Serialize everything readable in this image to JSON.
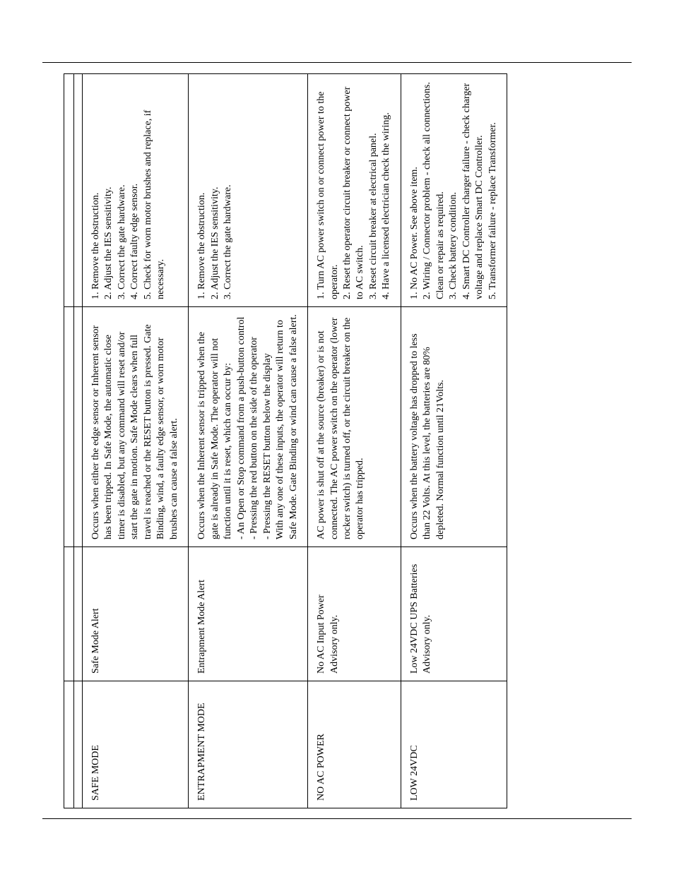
{
  "table": {
    "rows": [
      {
        "display": "SAFE MODE",
        "type": "Safe Mode Alert",
        "reason": "Occurs when either the edge sensor or Inherent sensor has been tripped. In Safe Mode, the automatic close timer is disabled, but any command will reset and/or start the gate in motion. Safe Mode clears when full travel is reached or the RESET button is pressed. Gate Binding, wind, a faulty edge sensor, or worn motor brushes can cause a false alert.",
        "solution": "1. Remove the obstruction.\n2. Adjust the IES sensitivity.\n3. Correct the gate hardware.\n4. Correct faulty edge sensor.\n5. Check for worn motor brushes and replace, if necessary."
      },
      {
        "display": "ENTRAPMENT MODE",
        "type": "Entrapment Mode Alert",
        "reason": "Occurs when the Inherent sensor is tripped when the gate is already in Safe Mode. The operator will not function until it is reset, which can occur by:\n- An Open or Stop command from a push-button control\n- Pressing the red button on the side of the operator\n- Pressing the RESET button below the display\nWith any one of these inputs, the operator will return to Safe Mode. Gate Binding or wind can cause a false alert.",
        "solution": "1. Remove the obstruction.\n2. Adjust the IES sensitivity.\n3. Correct the gate hardware."
      },
      {
        "display": "NO AC POWER",
        "type": "No AC Input Power\nAdvisory only.",
        "reason": "AC power is shut off at the source (breaker) or is not connected. The AC power switch on the operator (lower rocker switch) is turned off, or the circuit breaker on the operator has tripped.",
        "solution": "1. Turn AC power switch on or connect power to the operator.\n2. Reset the operator circuit breaker or connect power to AC switch.\n3. Reset circuit breaker at electrical panel.\n4. Have a licensed electrician check the wiring."
      },
      {
        "display": "LOW 24VDC",
        "type": "Low 24VDC UPS Batteries\nAdvisory only.",
        "reason": "Occurs when the battery voltage has dropped to less than 22 Volts. At this level, the batteries are 80% depleted. Normal function until 21Volts.",
        "solution": "1. No AC Power. See above item.\n2. Wiring / Connector problem - check all connections. Clean or repair as required.\n3. Check battery condition.\n4. Smart DC Controller charger failure - check charger voltage and replace Smart DC Controller.\n5. Transformer failure - replace Transformer."
      }
    ]
  }
}
